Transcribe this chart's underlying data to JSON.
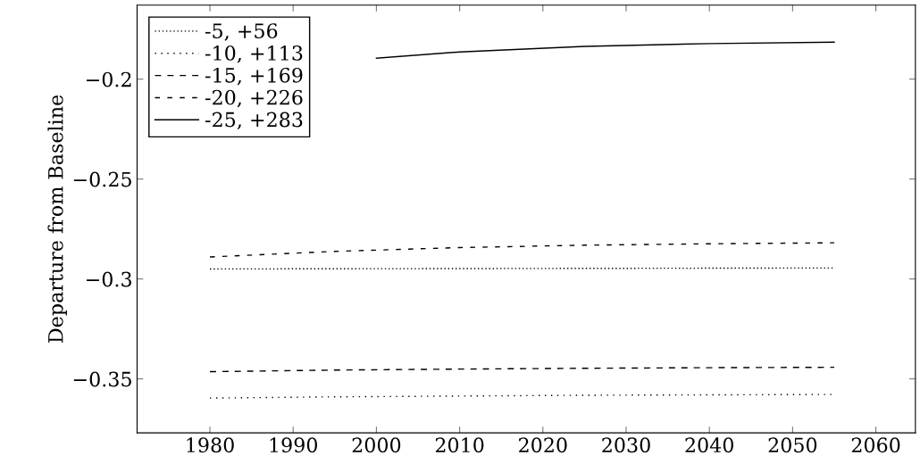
{
  "chart_data": {
    "type": "line",
    "ylabel": "Departure from Baseline",
    "xlim": [
      1971.25,
      2064.75
    ],
    "xticks": [
      1980,
      1990,
      2000,
      2010,
      2020,
      2030,
      2040,
      2050,
      2060
    ],
    "ylim": [
      -0.377,
      -0.163
    ],
    "yticks": [
      {
        "value": -0.35,
        "label": "−0.35"
      },
      {
        "value": -0.3,
        "label": "−0.3"
      },
      {
        "value": -0.25,
        "label": "−0.25"
      },
      {
        "value": -0.2,
        "label": "−0.2"
      }
    ],
    "grid": false,
    "legend": "top left",
    "series": [
      {
        "name": "-5, +56",
        "color": "#000000",
        "line_style": "dotted",
        "x": [
          1980,
          1995,
          2010,
          2025,
          2040,
          2055
        ],
        "values": [
          -0.295,
          -0.2949,
          -0.2948,
          -0.2947,
          -0.2946,
          -0.2945
        ]
      },
      {
        "name": "-10, +113",
        "color": "#000000",
        "line_style": "loosely dotted",
        "x": [
          1980,
          1995,
          2010,
          2025,
          2040,
          2055
        ],
        "values": [
          -0.3596,
          -0.359,
          -0.3586,
          -0.3582,
          -0.358,
          -0.3578
        ]
      },
      {
        "name": "-15, +169",
        "color": "#000000",
        "line_style": "dashed",
        "x": [
          1980,
          1995,
          2010,
          2025,
          2040,
          2055
        ],
        "values": [
          -0.3464,
          -0.3456,
          -0.3451,
          -0.3447,
          -0.3444,
          -0.3442
        ]
      },
      {
        "name": "-20, +226",
        "color": "#000000",
        "line_style": "loosely dashed",
        "x": [
          1980,
          1995,
          2010,
          2025,
          2040,
          2055
        ],
        "values": [
          -0.289,
          -0.2862,
          -0.2843,
          -0.2831,
          -0.2824,
          -0.2819
        ]
      },
      {
        "name": "-25, +283",
        "color": "#000000",
        "line_style": "solid",
        "x": [
          2000,
          2010,
          2025,
          2040,
          2055
        ],
        "values": [
          -0.1895,
          -0.1864,
          -0.1836,
          -0.1822,
          -0.1815
        ]
      }
    ]
  }
}
